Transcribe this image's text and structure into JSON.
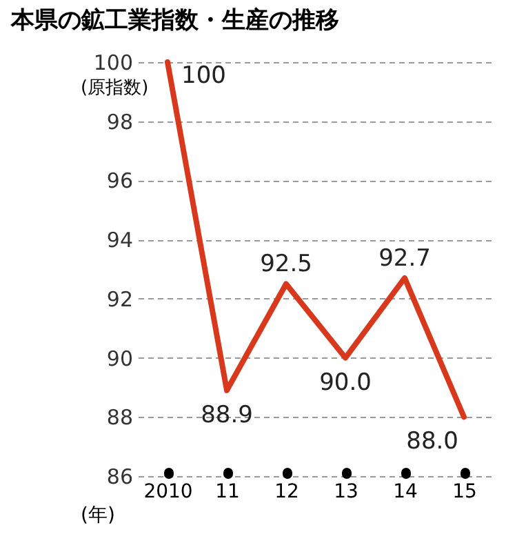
{
  "chart_data": {
    "type": "line",
    "title": "本県の鉱工業指数・生産の推移",
    "xlabel": "(年)",
    "ylabel": "(原指数)",
    "categories": [
      "2010",
      "11",
      "12",
      "13",
      "14",
      "15"
    ],
    "series": [
      {
        "color": "#d8391c",
        "values": [
          100,
          88.9,
          92.5,
          90.0,
          92.7,
          88.0
        ],
        "value_labels": [
          "100",
          "88.9",
          "92.5",
          "90.0",
          "92.7",
          "88.0"
        ]
      }
    ],
    "ylim": [
      86,
      100
    ],
    "yticks": [
      86,
      88,
      90,
      92,
      94,
      96,
      98,
      100
    ],
    "grid": "y",
    "marker": "none",
    "line_style": "solid"
  }
}
